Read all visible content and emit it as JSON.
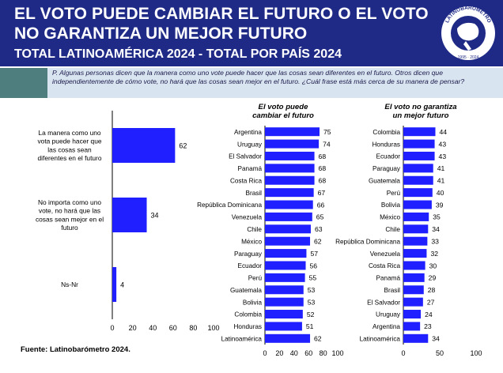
{
  "header": {
    "title_line1": "EL VOTO PUEDE CAMBIAR EL FUTURO O EL VOTO",
    "title_line2": "NO GARANTIZA UN MEJOR FUTURO",
    "subtitle": "TOTAL LATINOAMÉRICA 2024 - TOTAL POR PAÍS 2024",
    "logo_text": "LATINOBARÓMETRO",
    "logo_years": "1995 · 2024"
  },
  "question": "P. Algunas personas dicen que la manera como uno vote puede hacer que las cosas sean diferentes en el futuro. Otros dicen que independientemente de cómo vote, no hará que las cosas sean mejor en el futuro. ¿Cuál frase está más cerca de su manera de pensar?",
  "source": "Fuente: Latinobarómetro 2024.",
  "colors": {
    "bar": "#1f1fff",
    "header_bg": "#1f2a86",
    "question_bg": "#d8e4f0",
    "question_box": "#4e7f7e"
  },
  "chart_data": [
    {
      "type": "bar",
      "orientation": "horizontal",
      "title": "",
      "categories": [
        "La manera como uno vota puede hacer que las cosas sean diferentes en el futuro",
        "No importa como uno vote, no hará que las cosas sean mejor en el futuro",
        "Ns-Nr"
      ],
      "category_lines": [
        [
          "La manera como uno",
          "vota puede hacer que",
          "las cosas sean",
          "diferentes en el futuro"
        ],
        [
          "No importa como uno",
          "vote, no hará que las",
          "cosas sean mejor en el",
          "futuro"
        ],
        [
          "Ns-Nr"
        ]
      ],
      "values": [
        62,
        34,
        4
      ],
      "xlim": [
        0,
        100
      ],
      "xticks": [
        "0",
        "20",
        "40",
        "60",
        "80",
        "100"
      ]
    },
    {
      "type": "bar",
      "orientation": "horizontal",
      "title": "El voto puede cambiar el futuro",
      "title_lines": [
        "El voto puede",
        "cambiar el futuro"
      ],
      "categories": [
        "Argentina",
        "Uruguay",
        "El Salvador",
        "Panamá",
        "Costa Rica",
        "Brasil",
        "República Dominicana",
        "Venezuela",
        "Chile",
        "México",
        "Paraguay",
        "Ecuador",
        "Perú",
        "Guatemala",
        "Bolivia",
        "Colombia",
        "Honduras",
        "Latinoamérica"
      ],
      "values": [
        75,
        74,
        68,
        68,
        68,
        67,
        66,
        65,
        63,
        62,
        57,
        56,
        55,
        53,
        53,
        52,
        51,
        62
      ],
      "xlim": [
        0,
        100
      ],
      "xticks": [
        "0",
        "20",
        "40",
        "60",
        "80",
        "100"
      ]
    },
    {
      "type": "bar",
      "orientation": "horizontal",
      "title": "El voto no garantiza un mejor futuro",
      "title_lines": [
        "El voto no garantiza",
        "un mejor futuro"
      ],
      "categories": [
        "Colombia",
        "Honduras",
        "Ecuador",
        "Paraguay",
        "Guatemala",
        "Perú",
        "Bolivia",
        "México",
        "Chile",
        "República Dominicana",
        "Venezuela",
        "Costa Rica",
        "Panamá",
        "Brasil",
        "El Salvador",
        "Uruguay",
        "Argentina",
        "Latinoamérica"
      ],
      "values": [
        44,
        43,
        43,
        41,
        41,
        40,
        39,
        35,
        34,
        33,
        32,
        30,
        29,
        28,
        27,
        24,
        23,
        34
      ],
      "xlim": [
        0,
        100
      ],
      "xticks": [
        "0",
        "50",
        "100"
      ]
    }
  ]
}
